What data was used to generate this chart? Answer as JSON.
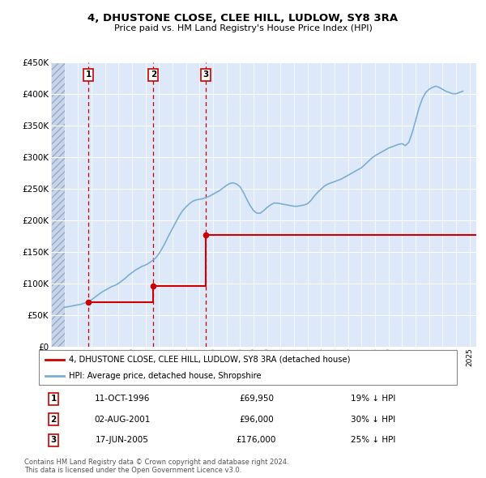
{
  "title": "4, DHUSTONE CLOSE, CLEE HILL, LUDLOW, SY8 3RA",
  "subtitle": "Price paid vs. HM Land Registry's House Price Index (HPI)",
  "legend_line1": "4, DHUSTONE CLOSE, CLEE HILL, LUDLOW, SY8 3RA (detached house)",
  "legend_line2": "HPI: Average price, detached house, Shropshire",
  "footnote1": "Contains HM Land Registry data © Crown copyright and database right 2024.",
  "footnote2": "This data is licensed under the Open Government Licence v3.0.",
  "transactions": [
    {
      "num": 1,
      "date": "11-OCT-1996",
      "price": 69950,
      "pct": "19%",
      "dir": "↓",
      "year_x": 1996.78
    },
    {
      "num": 2,
      "date": "02-AUG-2001",
      "price": 96000,
      "pct": "30%",
      "dir": "↓",
      "year_x": 2001.58
    },
    {
      "num": 3,
      "date": "17-JUN-2005",
      "price": 176000,
      "pct": "25%",
      "dir": "↓",
      "year_x": 2005.46
    }
  ],
  "hpi_color": "#7bafd4",
  "price_color": "#cc0000",
  "bg_color": "#dde8f8",
  "ylim": [
    0,
    450000
  ],
  "xlim_start": 1994.0,
  "xlim_end": 2025.5,
  "hpi_data_x": [
    1995.0,
    1995.25,
    1995.5,
    1995.75,
    1996.0,
    1996.25,
    1996.5,
    1996.75,
    1997.0,
    1997.25,
    1997.5,
    1997.75,
    1998.0,
    1998.25,
    1998.5,
    1998.75,
    1999.0,
    1999.25,
    1999.5,
    1999.75,
    2000.0,
    2000.25,
    2000.5,
    2000.75,
    2001.0,
    2001.25,
    2001.5,
    2001.75,
    2002.0,
    2002.25,
    2002.5,
    2002.75,
    2003.0,
    2003.25,
    2003.5,
    2003.75,
    2004.0,
    2004.25,
    2004.5,
    2004.75,
    2005.0,
    2005.25,
    2005.5,
    2005.75,
    2006.0,
    2006.25,
    2006.5,
    2006.75,
    2007.0,
    2007.25,
    2007.5,
    2007.75,
    2008.0,
    2008.25,
    2008.5,
    2008.75,
    2009.0,
    2009.25,
    2009.5,
    2009.75,
    2010.0,
    2010.25,
    2010.5,
    2010.75,
    2011.0,
    2011.25,
    2011.5,
    2011.75,
    2012.0,
    2012.25,
    2012.5,
    2012.75,
    2013.0,
    2013.25,
    2013.5,
    2013.75,
    2014.0,
    2014.25,
    2014.5,
    2014.75,
    2015.0,
    2015.25,
    2015.5,
    2015.75,
    2016.0,
    2016.25,
    2016.5,
    2016.75,
    2017.0,
    2017.25,
    2017.5,
    2017.75,
    2018.0,
    2018.25,
    2018.5,
    2018.75,
    2019.0,
    2019.25,
    2019.5,
    2019.75,
    2020.0,
    2020.25,
    2020.5,
    2020.75,
    2021.0,
    2021.25,
    2021.5,
    2021.75,
    2022.0,
    2022.25,
    2022.5,
    2022.75,
    2023.0,
    2023.25,
    2023.5,
    2023.75,
    2024.0,
    2024.25,
    2024.5
  ],
  "hpi_data_y": [
    62000,
    63000,
    64000,
    65000,
    66000,
    67000,
    69000,
    71000,
    74000,
    78000,
    82000,
    86000,
    89000,
    92000,
    95000,
    97000,
    100000,
    104000,
    108000,
    113000,
    117000,
    121000,
    124000,
    127000,
    129000,
    132000,
    136000,
    140000,
    147000,
    156000,
    166000,
    177000,
    187000,
    197000,
    207000,
    215000,
    221000,
    226000,
    230000,
    232000,
    233000,
    234000,
    236000,
    238000,
    241000,
    244000,
    247000,
    251000,
    255000,
    258000,
    259000,
    257000,
    253000,
    244000,
    233000,
    223000,
    215000,
    211000,
    211000,
    215000,
    220000,
    224000,
    227000,
    227000,
    226000,
    225000,
    224000,
    223000,
    222000,
    222000,
    223000,
    224000,
    226000,
    231000,
    238000,
    244000,
    249000,
    254000,
    257000,
    259000,
    261000,
    263000,
    265000,
    268000,
    271000,
    274000,
    277000,
    280000,
    283000,
    288000,
    293000,
    298000,
    302000,
    305000,
    308000,
    311000,
    314000,
    316000,
    318000,
    320000,
    321000,
    318000,
    323000,
    338000,
    357000,
    377000,
    392000,
    402000,
    407000,
    410000,
    412000,
    410000,
    407000,
    404000,
    402000,
    400000,
    400000,
    402000,
    404000
  ],
  "price_data_x": [
    1996.78,
    2001.58,
    2005.46
  ],
  "price_data_y": [
    69950,
    96000,
    176000
  ],
  "hatch_end": 1995.0
}
